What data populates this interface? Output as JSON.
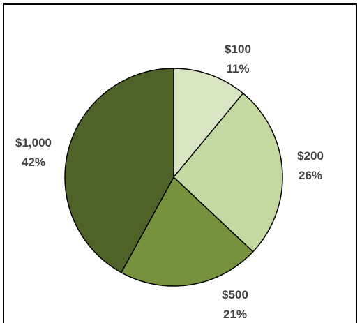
{
  "chart_data": {
    "type": "pie",
    "categories": [
      "$100",
      "$200",
      "$500",
      "$1,000"
    ],
    "values": [
      11,
      26,
      21,
      42
    ],
    "value_labels": [
      "11%",
      "26%",
      "21%",
      "42%"
    ],
    "colors": [
      "#d9e4c3",
      "#c4d9a1",
      "#76923c",
      "#4f6228"
    ],
    "start": "12 o'clock",
    "direction": "clockwise",
    "legend": "none",
    "title": "",
    "data_labels": "outside"
  }
}
